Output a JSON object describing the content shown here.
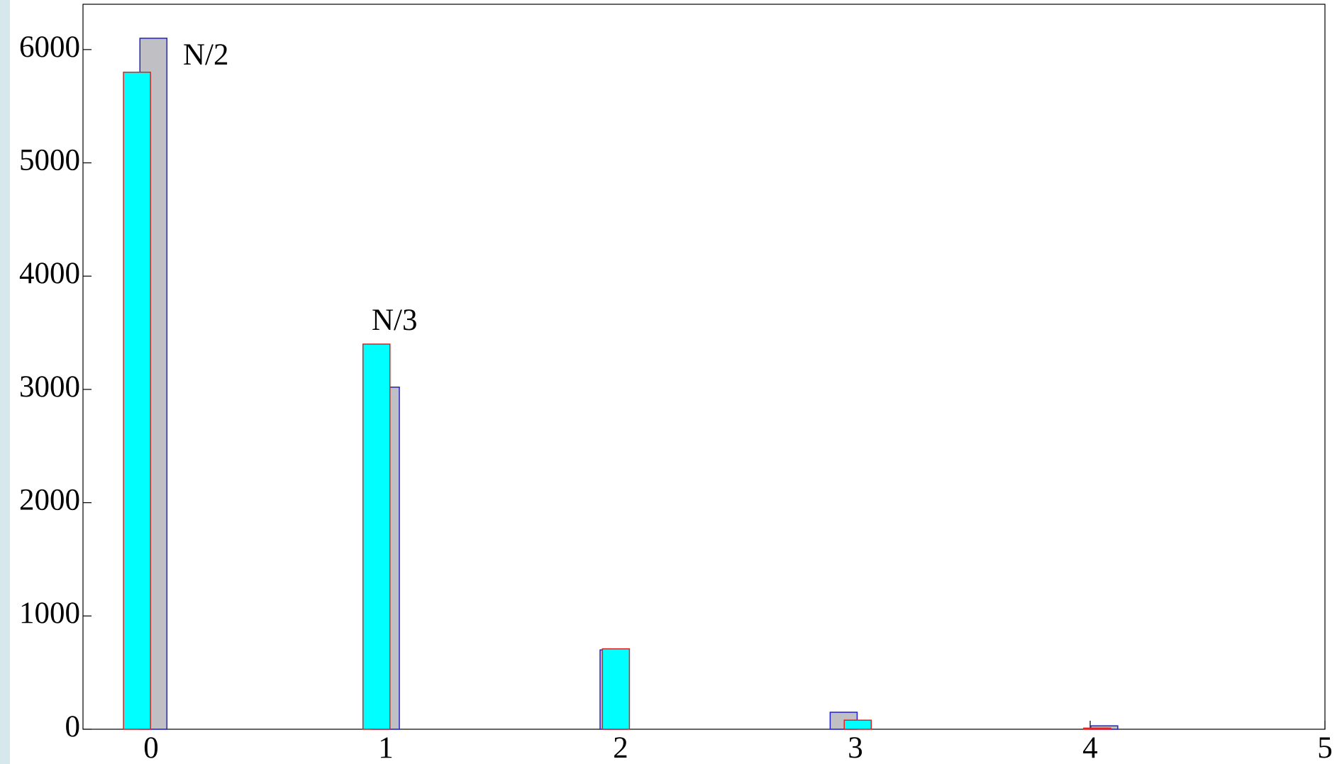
{
  "chart_data": {
    "type": "bar",
    "series": [
      {
        "color": "#c0c0c4",
        "edgecolor": "#2020d0",
        "x": [
          0.01,
          1.0,
          1.97,
          2.95,
          4.06
        ],
        "values": [
          6100,
          3020,
          700,
          150,
          30
        ]
      },
      {
        "color": "#00ffff",
        "edgecolor": "#e02020",
        "x": [
          -0.06,
          0.96,
          1.98,
          3.01,
          4.03
        ],
        "values": [
          5800,
          3400,
          710,
          80,
          10
        ]
      }
    ],
    "bar_width": 0.115,
    "annotations": [
      "N/2",
      "N/3"
    ],
    "xlim": [
      -0.29,
      5
    ],
    "xticks": [
      0,
      1,
      2,
      3,
      4,
      5
    ],
    "ylim": [
      0,
      6400
    ],
    "yticks": [
      0,
      1000,
      2000,
      3000,
      4000,
      5000,
      6000
    ]
  }
}
